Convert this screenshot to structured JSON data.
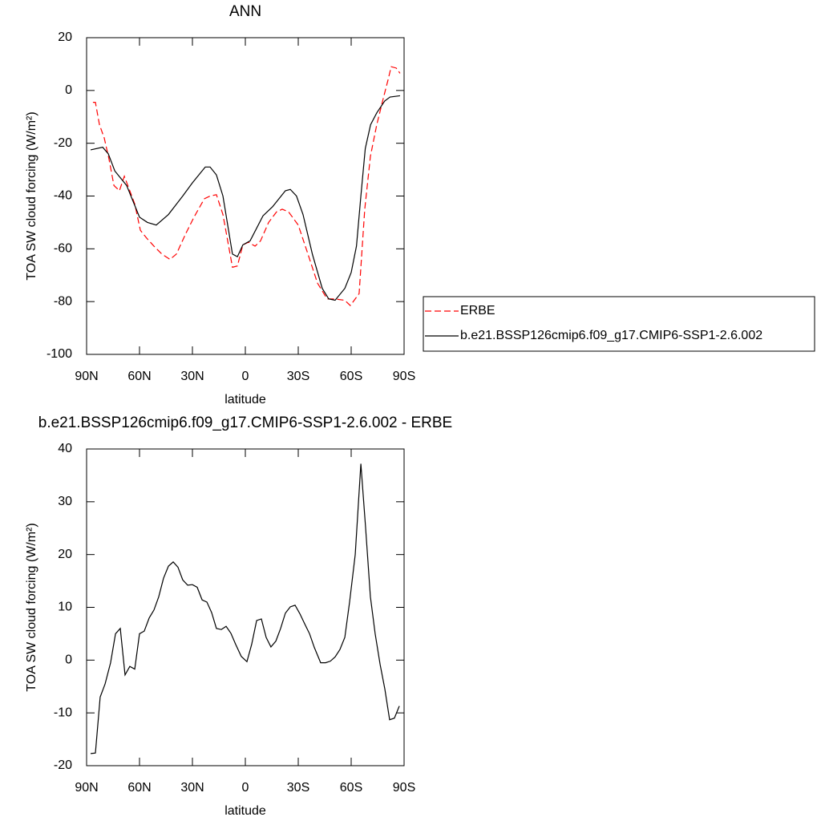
{
  "chart_data": [
    {
      "type": "line",
      "title": "ANN",
      "xlabel": "latitude",
      "ylabel": "TOA SW cloud forcing (W/m²)",
      "xlim": [
        90,
        -90
      ],
      "ylim": [
        20,
        -100
      ],
      "xticks": [
        {
          "value": 90,
          "label": "90N"
        },
        {
          "value": 60,
          "label": "60N"
        },
        {
          "value": 30,
          "label": "30N"
        },
        0,
        {
          "value": -30,
          "label": "30S"
        },
        {
          "value": -60,
          "label": "60S"
        },
        {
          "value": -90,
          "label": "90S"
        }
      ],
      "yticks": [
        20,
        0,
        -20,
        -40,
        -60,
        -80,
        -100
      ],
      "legend": "right",
      "series": [
        {
          "name": "ERBE",
          "color": "#ff0000",
          "dash": true,
          "x": [
            86.4,
            85.0,
            82.7,
            80.0,
            77.3,
            74.5,
            71.4,
            68.6,
            65.5,
            62.7,
            59.5,
            55.9,
            51.8,
            47.3,
            42.7,
            39.1,
            33.6,
            29.1,
            23.2,
            20.0,
            16.4,
            12.7,
            7.3,
            4.5,
            1.4,
            -1.8,
            -5.5,
            -8.6,
            -13.2,
            -17.7,
            -20.9,
            -24.5,
            -30.0,
            -35.5,
            -40.9,
            -46.4,
            -50.9,
            -56.4,
            -59.5,
            -64.5,
            -67.7,
            -70.9,
            -74.5,
            -78.2,
            -80.9,
            -82.7,
            -85.5,
            -87.7
          ],
          "values": [
            -4.5,
            -4.5,
            -13,
            -18,
            -26,
            -36,
            -38,
            -32.5,
            -38,
            -43,
            -53,
            -56,
            -59,
            -62,
            -64,
            -62,
            -54,
            -48,
            -41,
            -40,
            -39.5,
            -47,
            -67,
            -66.5,
            -58.5,
            -57.5,
            -59,
            -57,
            -50,
            -46,
            -45,
            -46,
            -51,
            -62,
            -73,
            -79,
            -79,
            -79.5,
            -81.5,
            -77,
            -45,
            -25,
            -13,
            -3,
            4,
            9,
            8.5,
            6.5
          ]
        },
        {
          "name": "b.e21.BSSP126cmip6.f09_g17.CMIP6-SSP1-2.6.002",
          "color": "#000000",
          "dash": false,
          "x": [
            87.7,
            80.9,
            77.7,
            74.0,
            67.3,
            60.0,
            55.5,
            50.5,
            43.6,
            35.5,
            30.0,
            22.7,
            20.0,
            16.4,
            12.7,
            7.3,
            4.5,
            1.4,
            -2.7,
            -10.0,
            -15.5,
            -22.7,
            -25.5,
            -29.0,
            -32.7,
            -38.0,
            -43.6,
            -47.3,
            -50.9,
            -56.4,
            -60.0,
            -63.0,
            -65.5,
            -68.0,
            -71.0,
            -74.5,
            -79.0,
            -82.0,
            -87.7
          ],
          "values": [
            -22.5,
            -21.5,
            -24,
            -30.5,
            -36,
            -48,
            -50,
            -51,
            -47,
            -40,
            -35,
            -29,
            -29,
            -32,
            -40,
            -62,
            -63,
            -58.5,
            -57,
            -47.5,
            -44,
            -38,
            -37.5,
            -40,
            -47,
            -62,
            -75,
            -79,
            -79.5,
            -75,
            -69,
            -59,
            -40,
            -22,
            -13,
            -8.5,
            -4,
            -2.5,
            -2
          ]
        }
      ]
    },
    {
      "type": "line",
      "title": "b.e21.BSSP126cmip6.f09_g17.CMIP6-SSP1-2.6.002 - ERBE",
      "xlabel": "latitude",
      "ylabel": "TOA SW cloud forcing (W/m²)",
      "xlim": [
        90,
        -90
      ],
      "ylim": [
        40,
        -20
      ],
      "xticks": [
        {
          "value": 90,
          "label": "90N"
        },
        {
          "value": 60,
          "label": "60N"
        },
        {
          "value": 30,
          "label": "30N"
        },
        0,
        {
          "value": -30,
          "label": "30S"
        },
        {
          "value": -60,
          "label": "60S"
        },
        {
          "value": -90,
          "label": "90S"
        }
      ],
      "yticks": [
        40,
        30,
        20,
        10,
        0,
        -10,
        -20
      ],
      "series": [
        {
          "color": "#000000",
          "dash": false,
          "x": [
            87.7,
            85.0,
            82.3,
            79.5,
            76.4,
            73.6,
            70.9,
            68.2,
            65.5,
            62.7,
            60.0,
            57.3,
            54.5,
            51.8,
            49.1,
            46.4,
            43.6,
            40.9,
            38.2,
            35.5,
            32.7,
            30.0,
            27.3,
            24.5,
            21.8,
            19.1,
            16.4,
            13.6,
            10.9,
            8.2,
            5.5,
            2.3,
            -0.9,
            -3.6,
            -6.4,
            -9.1,
            -11.8,
            -14.5,
            -17.3,
            -20.0,
            -22.7,
            -25.5,
            -28.2,
            -30.9,
            -33.6,
            -36.4,
            -39.1,
            -42.7,
            -45.5,
            -48.2,
            -50.9,
            -53.6,
            -56.4,
            -59.1,
            -62.3,
            -65.5,
            -68.2,
            -70.9,
            -73.6,
            -76.4,
            -79.1,
            -81.8,
            -84.5,
            -87.3
          ],
          "values": [
            -17.7,
            -17.6,
            -7,
            -4.5,
            -0.5,
            5,
            6,
            -2.8,
            -1.2,
            -1.7,
            5,
            5.5,
            8,
            9.5,
            12,
            15.5,
            17.8,
            18.6,
            17.6,
            15.2,
            14.2,
            14.3,
            13.8,
            11.4,
            11,
            9,
            6,
            5.8,
            6.4,
            5.1,
            3,
            0.7,
            -0.3,
            3,
            7.5,
            7.8,
            4.3,
            2.5,
            3.6,
            6,
            8.9,
            10.1,
            10.4,
            8.8,
            6.9,
            5,
            2.4,
            -0.5,
            -0.5,
            -0.2,
            0.6,
            2,
            4.3,
            11,
            20,
            37.2,
            25,
            12,
            5,
            -0.8,
            -5.5,
            -11.3,
            -11,
            -8.7
          ]
        }
      ]
    }
  ]
}
